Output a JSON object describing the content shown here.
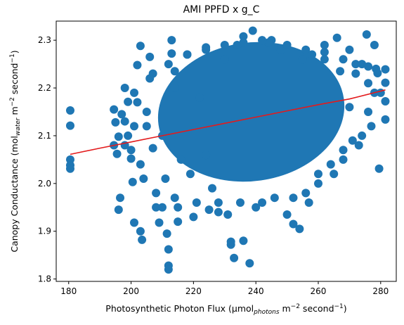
{
  "chart_data": {
    "type": "scatter",
    "title": "AMI PPFD x g_C",
    "xlabel": {
      "main": "Photosynthetic Photon Flux (µmol",
      "sub": "photons",
      "mid": " m",
      "sup1": "−2",
      "end": " second",
      "sup2": "−1",
      "close": ")"
    },
    "ylabel": {
      "main": "Canopy Conductance (mol",
      "sub": "water",
      "mid": " m",
      "sup1": "−2",
      "end": " second",
      "sup2": "−1",
      "close": ")"
    },
    "xlim": [
      176,
      285
    ],
    "ylim": [
      1.795,
      2.34
    ],
    "xticks": [
      180,
      200,
      220,
      240,
      260,
      280
    ],
    "yticks": [
      1.8,
      1.9,
      2.0,
      2.1,
      2.2,
      2.3
    ],
    "xtick_labels": [
      "180",
      "200",
      "220",
      "240",
      "260",
      "280"
    ],
    "ytick_labels": [
      "1.8",
      "1.9",
      "2.0",
      "2.1",
      "2.2",
      "2.3"
    ],
    "grid": false,
    "scatter_color": "#1f77b4",
    "fit_color": "#e31a1c",
    "points": [
      [
        180.5,
        2.153
      ],
      [
        180.5,
        2.121
      ],
      [
        180.5,
        2.05
      ],
      [
        180.5,
        2.038
      ],
      [
        180.5,
        2.031
      ],
      [
        194.5,
        2.155
      ],
      [
        195,
        2.128
      ],
      [
        196,
        2.098
      ],
      [
        194.5,
        2.08
      ],
      [
        195.5,
        2.062
      ],
      [
        196.5,
        1.97
      ],
      [
        196,
        1.945
      ],
      [
        198,
        2.2
      ],
      [
        199,
        2.171
      ],
      [
        200,
        2.052
      ],
      [
        200.5,
        2.003
      ],
      [
        201,
        1.918
      ],
      [
        203,
        2.288
      ],
      [
        202,
        2.248
      ],
      [
        203.5,
        1.882
      ],
      [
        203,
        1.9
      ],
      [
        205,
        2.12
      ],
      [
        207,
        2.074
      ],
      [
        208,
        1.95
      ],
      [
        209,
        1.918
      ],
      [
        210,
        2.1
      ],
      [
        211,
        2.01
      ],
      [
        211.5,
        1.895
      ],
      [
        212,
        1.862
      ],
      [
        212,
        1.828
      ],
      [
        212,
        1.82
      ],
      [
        213,
        2.3
      ],
      [
        213,
        2.272
      ],
      [
        214,
        2.2
      ],
      [
        214,
        1.97
      ],
      [
        215,
        1.92
      ],
      [
        216,
        2.05
      ],
      [
        218,
        2.27
      ],
      [
        219,
        2.02
      ],
      [
        220,
        1.93
      ],
      [
        222,
        2.18
      ],
      [
        224,
        2.06
      ],
      [
        226,
        1.99
      ],
      [
        228,
        1.96
      ],
      [
        230,
        2.26
      ],
      [
        231,
        1.935
      ],
      [
        232,
        1.878
      ],
      [
        232,
        1.872
      ],
      [
        233,
        1.844
      ],
      [
        234,
        2.29
      ],
      [
        236,
        1.88
      ],
      [
        238,
        1.833
      ],
      [
        239,
        2.32
      ],
      [
        242,
        1.96
      ],
      [
        245,
        2.3
      ],
      [
        248,
        2.28
      ],
      [
        250,
        1.935
      ],
      [
        252,
        1.915
      ],
      [
        254,
        1.905
      ],
      [
        255,
        2.26
      ],
      [
        257,
        1.96
      ],
      [
        258,
        2.27
      ],
      [
        260,
        2.0
      ],
      [
        262,
        2.26
      ],
      [
        265,
        2.02
      ],
      [
        267,
        2.235
      ],
      [
        268,
        2.07
      ],
      [
        270,
        2.16
      ],
      [
        272,
        2.25
      ],
      [
        273,
        2.08
      ],
      [
        274,
        2.25
      ],
      [
        275.5,
        2.312
      ],
      [
        276,
        2.245
      ],
      [
        277,
        2.12
      ],
      [
        278,
        2.29
      ],
      [
        278.5,
        2.24
      ],
      [
        279,
        2.231
      ],
      [
        279.5,
        2.031
      ],
      [
        280,
        2.19
      ],
      [
        281.5,
        2.239
      ],
      [
        281.5,
        2.211
      ],
      [
        281.5,
        2.172
      ],
      [
        281.5,
        2.134
      ],
      [
        206,
        2.265
      ],
      [
        224,
        2.285
      ],
      [
        236,
        2.308
      ],
      [
        244,
        2.295
      ],
      [
        262,
        2.29
      ],
      [
        270,
        2.28
      ],
      [
        266,
        2.305
      ],
      [
        214,
        2.235
      ],
      [
        207,
        2.23
      ],
      [
        202,
        2.17
      ],
      [
        197,
        2.145
      ],
      [
        199,
        2.1
      ],
      [
        203,
        2.04
      ],
      [
        204,
        2.01
      ],
      [
        208,
        1.98
      ],
      [
        210,
        1.95
      ],
      [
        215,
        1.95
      ],
      [
        221,
        1.96
      ],
      [
        225,
        1.945
      ],
      [
        228,
        1.94
      ],
      [
        235,
        1.96
      ],
      [
        240,
        1.95
      ],
      [
        246,
        1.97
      ],
      [
        252,
        1.97
      ],
      [
        256,
        1.98
      ],
      [
        260,
        2.02
      ],
      [
        264,
        2.04
      ],
      [
        268,
        2.05
      ],
      [
        271,
        2.09
      ],
      [
        274,
        2.1
      ],
      [
        276,
        2.15
      ],
      [
        278,
        2.19
      ],
      [
        276,
        2.21
      ],
      [
        272,
        2.23
      ],
      [
        268,
        2.26
      ],
      [
        262,
        2.275
      ],
      [
        256,
        2.28
      ],
      [
        250,
        2.29
      ],
      [
        242,
        2.3
      ],
      [
        236,
        2.295
      ],
      [
        230,
        2.29
      ],
      [
        224,
        2.28
      ],
      [
        218,
        2.27
      ],
      [
        212,
        2.25
      ],
      [
        206,
        2.22
      ],
      [
        201,
        2.19
      ],
      [
        198,
        2.13
      ],
      [
        198,
        2.08
      ],
      [
        200,
        2.07
      ],
      [
        201,
        2.12
      ],
      [
        205,
        2.15
      ]
    ],
    "core": {
      "center": [
        238.5,
        2.15
      ],
      "ellipse_radius": [
        30,
        0.145
      ],
      "rotation_deg": -8
    },
    "fit_line": {
      "x": [
        180.5,
        190,
        200,
        210,
        220,
        230,
        240,
        250,
        260,
        270,
        281.5
      ],
      "y": [
        2.061,
        2.074,
        2.087,
        2.1,
        2.113,
        2.126,
        2.139,
        2.152,
        2.165,
        2.177,
        2.196
      ]
    }
  }
}
